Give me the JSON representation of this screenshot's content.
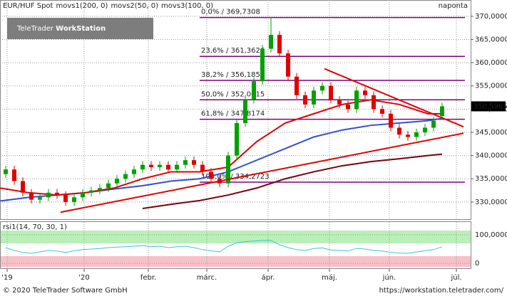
{
  "chart_data": {
    "type": "candlestick",
    "instrument": "EUR/HUF Spot",
    "interval": "naponta",
    "logo": {
      "brand": "TeleTrader",
      "product": "WorkStation"
    },
    "footer_left": "© 2020 TeleTrader Software GmbH",
    "footer_right": "https://workstation.teletrader.com/",
    "xlim": [
      0,
      165
    ],
    "xticks": [
      {
        "value": 2.5,
        "label": "'19"
      },
      {
        "value": 29.5,
        "label": "'20"
      },
      {
        "value": 52,
        "label": "febr."
      },
      {
        "value": 72.5,
        "label": "márc."
      },
      {
        "value": 94,
        "label": "ápr."
      },
      {
        "value": 115.5,
        "label": "máj."
      },
      {
        "value": 136.5,
        "label": "jún."
      },
      {
        "value": 160,
        "label": "júl."
      }
    ],
    "ylim": [
      326.3,
      373.5
    ],
    "yticks": [
      {
        "value": 330,
        "label": "330,0000"
      },
      {
        "value": 335,
        "label": "335,0000"
      },
      {
        "value": 340,
        "label": "340,0000"
      },
      {
        "value": 345,
        "label": "345,0000"
      },
      {
        "value": 350,
        "label": "350,0000"
      },
      {
        "value": 355,
        "label": "355,0000"
      },
      {
        "value": 360,
        "label": "360,0000"
      },
      {
        "value": 365,
        "label": "365,0000"
      },
      {
        "value": 370,
        "label": "370,0000"
      }
    ],
    "grid": true,
    "up_color": "#00a000",
    "down_color": "#e00000",
    "candles": {
      "x": [
        2,
        5,
        8,
        11,
        14,
        17,
        20,
        23,
        26,
        29,
        32,
        35,
        38,
        41,
        44,
        47,
        50,
        53,
        56,
        59,
        62,
        65,
        68,
        71,
        74,
        77,
        80,
        83,
        86,
        89,
        92,
        95,
        98,
        101,
        104,
        107,
        110,
        113,
        116,
        119,
        122,
        125,
        128,
        131,
        134,
        137,
        140,
        143,
        146,
        149,
        152,
        155
      ],
      "open": [
        336,
        337,
        334.5,
        332,
        330.5,
        331,
        332,
        331.5,
        330,
        331,
        332,
        332.5,
        333,
        334,
        335,
        336,
        337,
        338,
        337.5,
        338,
        337,
        338,
        339,
        338,
        336.5,
        335,
        334,
        340,
        347,
        352,
        356,
        363,
        366,
        362,
        357,
        353,
        351,
        354,
        355,
        352,
        351,
        350,
        354,
        353,
        350,
        349,
        346,
        344.5,
        344,
        345,
        346,
        348.5
      ],
      "high": [
        337.8,
        337.8,
        335.3,
        332.8,
        331.8,
        332.8,
        332.8,
        332.3,
        331.8,
        332.8,
        333.3,
        333.8,
        334.8,
        335.8,
        336.8,
        337.8,
        338.8,
        338.8,
        338.8,
        338.8,
        338.8,
        339.8,
        339.8,
        338.8,
        337.3,
        335.8,
        340.8,
        347.8,
        352.8,
        356.8,
        363.8,
        369.7,
        366.8,
        362.8,
        357.8,
        353.8,
        354.8,
        355.8,
        355.8,
        352.8,
        351.8,
        354.8,
        354.8,
        353.8,
        350.8,
        349.8,
        346.8,
        345.3,
        345.8,
        346.8,
        348.3,
        351.4
      ],
      "low": [
        335.2,
        333.7,
        331.2,
        329.7,
        329.7,
        330.2,
        330.7,
        329.2,
        329.2,
        330.2,
        331.2,
        331.7,
        332.2,
        333.2,
        334.2,
        335.2,
        336.2,
        336.7,
        336.7,
        336.2,
        336.2,
        337.2,
        337.2,
        335.7,
        334.2,
        333.2,
        333.2,
        339.2,
        346.2,
        351.2,
        355.2,
        362.2,
        361.2,
        356.2,
        352.2,
        350.2,
        350.2,
        353.2,
        351.2,
        350.2,
        349.2,
        349.2,
        352.2,
        349.2,
        348.2,
        345.2,
        343.7,
        343.2,
        343.2,
        344.2,
        345.2,
        347.7
      ],
      "close": [
        337,
        334.5,
        332,
        330.5,
        331,
        332,
        331.5,
        330,
        331,
        332,
        332.5,
        333,
        334,
        335,
        336,
        337,
        338,
        337.5,
        338,
        337,
        338,
        339,
        338,
        336.5,
        335,
        334,
        340,
        347,
        352,
        356,
        363,
        366,
        362,
        357,
        353,
        351,
        354,
        355,
        352,
        351,
        350,
        354,
        353,
        350,
        349,
        346,
        344.5,
        344,
        345,
        346,
        347.5,
        350.6
      ]
    },
    "ma_x": [
      0,
      10,
      20,
      30,
      40,
      50,
      60,
      70,
      80,
      90,
      100,
      110,
      120,
      130,
      140,
      150,
      155
    ],
    "series": [
      {
        "name": "movs1(200, 0)",
        "color": "#7a0010",
        "values": [
          null,
          null,
          null,
          null,
          null,
          328.6,
          329.5,
          330.3,
          331.5,
          333,
          335,
          336.5,
          337.8,
          338.7,
          339.3,
          340,
          340.3
        ]
      },
      {
        "name": "movs2(50, 0)",
        "color": "#3050d0",
        "values": [
          330.2,
          331,
          331.5,
          332,
          332.8,
          333.5,
          334.5,
          335,
          336.5,
          339,
          341.5,
          344,
          345.5,
          346.5,
          347,
          347.5,
          348
        ]
      },
      {
        "name": "movs3(100, 0)",
        "color": "#e00000",
        "values": [
          333,
          332,
          331.5,
          332,
          333,
          335,
          336.5,
          336.5,
          337.5,
          343,
          347,
          349,
          351,
          352,
          351,
          349,
          349
        ]
      }
    ],
    "fib_color": "#800080",
    "fib_levels": [
      {
        "value": 369.7308,
        "label": "0,0% / 369,7308"
      },
      {
        "value": 361.3626,
        "label": "23,6% / 361,3626"
      },
      {
        "value": 356.1851,
        "label": "38,2% / 356,1851"
      },
      {
        "value": 352.0015,
        "label": "50,0% / 352,0015"
      },
      {
        "value": 347.8174,
        "label": "61,8% / 347,8174"
      },
      {
        "value": 334.2723,
        "label": "100,0% / 334,2723"
      }
    ],
    "trend_color": "#e00000",
    "trendlines": [
      {
        "x": [
          113.75,
          162.5
        ],
        "y": [
          358.7,
          346.2
        ]
      },
      {
        "x": [
          21.25,
          162.5
        ],
        "y": [
          327.8,
          344.8
        ]
      }
    ],
    "last_price": {
      "value": 350.5965,
      "label": "350,5965"
    },
    "rsi": {
      "title": "rsi1(14, 70, 30, 1)",
      "upper": 70,
      "lower": 30,
      "color": "#40c0e0",
      "ylim": [
        -20,
        145
      ],
      "yticks": [
        {
          "value": 100,
          "label": "100,0000"
        },
        0
      ],
      "values": [
        55,
        45,
        38,
        35,
        40,
        45,
        43,
        38,
        44,
        48,
        50,
        52,
        55,
        57,
        58,
        60,
        62,
        58,
        60,
        55,
        58,
        60,
        55,
        48,
        44,
        40,
        60,
        72,
        76,
        78,
        80,
        80,
        65,
        55,
        48,
        45,
        52,
        54,
        47,
        45,
        43,
        52,
        50,
        45,
        43,
        38,
        36,
        35,
        40,
        44,
        48,
        58
      ]
    }
  }
}
